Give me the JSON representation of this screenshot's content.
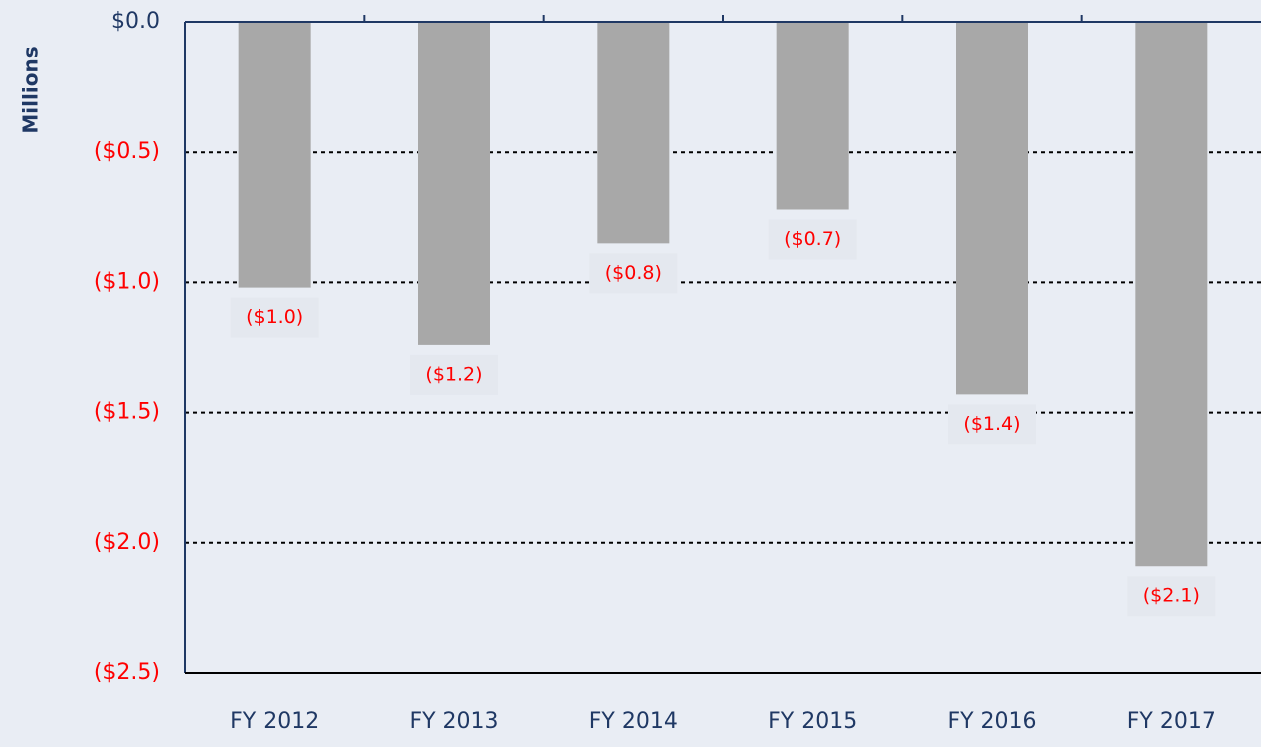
{
  "chart_data": {
    "type": "bar",
    "y_label": "Millions",
    "categories": [
      "FY 2012",
      "FY 2013",
      "FY 2014",
      "FY 2015",
      "FY 2016",
      "FY 2017"
    ],
    "values": [
      -1.02,
      -1.24,
      -0.85,
      -0.72,
      -1.43,
      -2.09
    ],
    "value_labels": [
      "($1.0)",
      "($1.2)",
      "($0.8)",
      "($0.7)",
      "($1.4)",
      "($2.1)"
    ],
    "color": "#a8a8a8",
    "label_color": "#ff0000",
    "axis_color": "#1f3864",
    "ylim": [
      -2.5,
      0
    ],
    "yticks": [
      {
        "value": 0,
        "label": "$0.0"
      },
      {
        "value": -0.5,
        "label": "($0.5)"
      },
      {
        "value": -1.0,
        "label": "($1.0)"
      },
      {
        "value": -1.5,
        "label": "($1.5)"
      },
      {
        "value": -2.0,
        "label": "($2.0)"
      },
      {
        "value": -2.5,
        "label": "($2.5)"
      }
    ],
    "grid": true
  }
}
